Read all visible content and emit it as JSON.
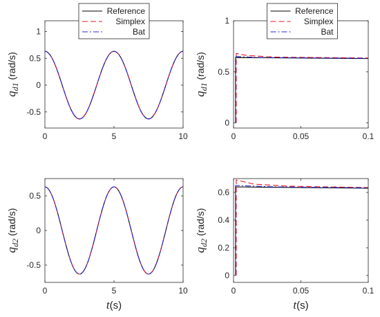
{
  "chart_data": [
    {
      "id": "p1",
      "type": "line",
      "ylabel_main": "q",
      "ylabel_sub": "d1",
      "ylabel_unit": " (rad/s)",
      "xlabel": "",
      "xlim": [
        0,
        10
      ],
      "ylim": [
        -0.8,
        1.2
      ],
      "xticks": [
        0,
        5,
        10
      ],
      "xticklabels": [
        "0",
        "5",
        "10"
      ],
      "yticks": [
        -0.5,
        0,
        0.5,
        1
      ],
      "yticklabels": [
        "-0.5",
        "0",
        "0.5",
        "1"
      ],
      "legend": true,
      "series": [
        {
          "name": "Reference",
          "color": "#000000",
          "dash": "solid",
          "kind": "cos",
          "amp": 0.63,
          "period": 5
        },
        {
          "name": "Simplex",
          "color": "#e8141b",
          "dash": "dashed",
          "kind": "cos",
          "amp": 0.63,
          "period": 5
        },
        {
          "name": "Bat",
          "color": "#2525d8",
          "dash": "dashdot",
          "kind": "cos",
          "amp": 0.63,
          "period": 5
        }
      ]
    },
    {
      "id": "p2",
      "type": "line",
      "ylabel_main": "q",
      "ylabel_sub": "d1",
      "ylabel_unit": " (rad/s)",
      "xlabel": "",
      "xlim": [
        0,
        0.1
      ],
      "ylim": [
        -0.05,
        1.0
      ],
      "xticks": [
        0,
        0.05,
        0.1
      ],
      "xticklabels": [
        "0",
        "0.05",
        "0.1"
      ],
      "yticks": [
        0,
        0.5,
        1
      ],
      "yticklabels": [
        "0",
        "0.5",
        "1"
      ],
      "legend": true,
      "series": [
        {
          "name": "Reference",
          "color": "#000000",
          "dash": "solid",
          "kind": "step",
          "points": [
            [
              0,
              0.64
            ],
            [
              0.1,
              0.63
            ]
          ],
          "step_at": 0.0015
        },
        {
          "name": "Simplex",
          "color": "#e8141b",
          "dash": "dashed",
          "kind": "step",
          "points": [
            [
              0.002,
              0.68
            ],
            [
              0.01,
              0.66
            ],
            [
              0.03,
              0.645
            ],
            [
              0.1,
              0.635
            ]
          ],
          "step_at": 0.002
        },
        {
          "name": "Bat",
          "color": "#2525d8",
          "dash": "dashdot",
          "kind": "step",
          "points": [
            [
              0.002,
              0.65
            ],
            [
              0.02,
              0.64
            ],
            [
              0.1,
              0.633
            ]
          ],
          "step_at": 0.0015
        }
      ]
    },
    {
      "id": "p3",
      "type": "line",
      "ylabel_main": "q",
      "ylabel_sub": "d2",
      "ylabel_unit": " (rad/s)",
      "xlabel_main": "t",
      "xlabel_unit": "(s)",
      "xlim": [
        0,
        10
      ],
      "ylim": [
        -0.75,
        0.75
      ],
      "xticks": [
        0,
        5,
        10
      ],
      "xticklabels": [
        "0",
        "5",
        "10"
      ],
      "yticks": [
        -0.5,
        0,
        0.5
      ],
      "yticklabels": [
        "-0.5",
        "0",
        "0.5"
      ],
      "legend": false,
      "series": [
        {
          "name": "Reference",
          "color": "#000000",
          "dash": "solid",
          "kind": "cos",
          "amp": 0.63,
          "period": 5
        },
        {
          "name": "Simplex",
          "color": "#e8141b",
          "dash": "dashed",
          "kind": "cos",
          "amp": 0.63,
          "period": 5
        },
        {
          "name": "Bat",
          "color": "#2525d8",
          "dash": "dashdot",
          "kind": "cos",
          "amp": 0.63,
          "period": 5
        }
      ]
    },
    {
      "id": "p4",
      "type": "line",
      "ylabel_main": "q",
      "ylabel_sub": "d2",
      "ylabel_unit": " (rad/s)",
      "xlabel_main": "t",
      "xlabel_unit": "(s)",
      "xlim": [
        0,
        0.1
      ],
      "ylim": [
        -0.05,
        0.7
      ],
      "xticks": [
        0,
        0.05,
        0.1
      ],
      "xticklabels": [
        "0",
        "0.05",
        "0.1"
      ],
      "yticks": [
        0,
        0.2,
        0.4,
        0.6
      ],
      "yticklabels": [
        "0",
        "0.2",
        "0.4",
        "0.6"
      ],
      "legend": false,
      "series": [
        {
          "name": "Reference",
          "color": "#000000",
          "dash": "solid",
          "kind": "step",
          "points": [
            [
              0,
              0.64
            ],
            [
              0.1,
              0.63
            ]
          ],
          "step_at": 0.0015
        },
        {
          "name": "Simplex",
          "color": "#e8141b",
          "dash": "dashed",
          "kind": "step",
          "points": [
            [
              0.002,
              0.69
            ],
            [
              0.015,
              0.66
            ],
            [
              0.04,
              0.645
            ],
            [
              0.1,
              0.635
            ]
          ],
          "step_at": 0.002
        },
        {
          "name": "Bat",
          "color": "#2525d8",
          "dash": "dashdot",
          "kind": "step",
          "points": [
            [
              0.002,
              0.65
            ],
            [
              0.03,
              0.64
            ],
            [
              0.1,
              0.633
            ]
          ],
          "step_at": 0.0015
        }
      ]
    }
  ]
}
